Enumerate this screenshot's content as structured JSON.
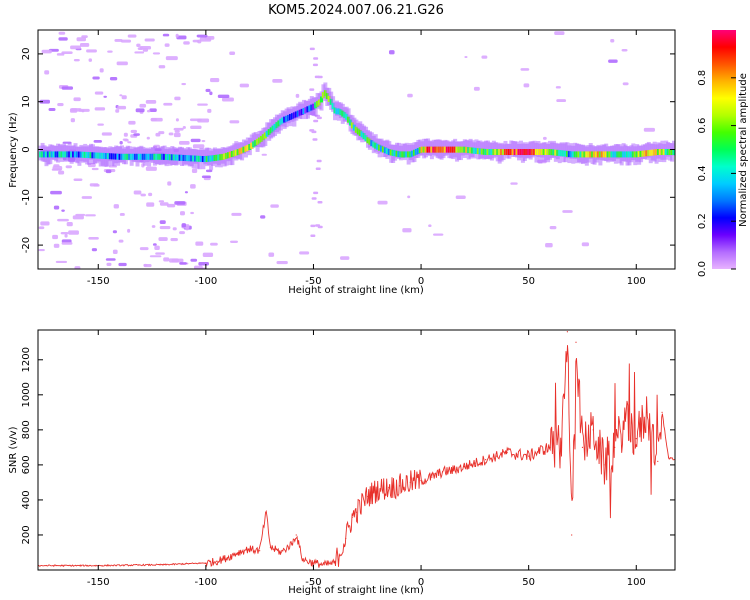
{
  "title": "KOM5.2024.007.06.21.G26",
  "chart_data": [
    {
      "type": "heatmap",
      "xlabel": "Height of straight line (km)",
      "ylabel": "Frequency (Hz)",
      "xlim": [
        -178,
        118
      ],
      "ylim": [
        -25,
        25
      ],
      "xticks": [
        -150,
        -100,
        -50,
        0,
        50,
        100
      ],
      "yticks": [
        -20,
        -10,
        0,
        10,
        20
      ],
      "ridge": {
        "x": [
          -178,
          -160,
          -140,
          -120,
          -100,
          -92,
          -85,
          -80,
          -75,
          -70,
          -65,
          -60,
          -55,
          -50,
          -47,
          -45,
          -42,
          -40,
          -38,
          -35,
          -32,
          -30,
          -27,
          -25,
          -22,
          -20,
          -15,
          -10,
          -5,
          0,
          10,
          20,
          30,
          40,
          50,
          60,
          70,
          80,
          90,
          100,
          110,
          118
        ],
        "y": [
          -1,
          -1,
          -1.5,
          -1.5,
          -2,
          -1.5,
          -0.5,
          0.5,
          2,
          4,
          6,
          7,
          8,
          9,
          10,
          12,
          10,
          8,
          8,
          7,
          5,
          4,
          3,
          2,
          1,
          0.5,
          -0.5,
          -1,
          -1,
          0,
          0,
          0,
          -0.5,
          -0.5,
          -0.5,
          -0.5,
          -1,
          -1,
          -1,
          -1,
          -0.5,
          -0.5
        ]
      },
      "colorbar": {
        "label": "Normalized spectral amplitude",
        "range": [
          0,
          1
        ],
        "ticks": [
          0.0,
          0.2,
          0.4,
          0.6,
          0.8
        ],
        "colormap": [
          "#e8b3ff",
          "#b36bff",
          "#6a00ff",
          "#0000ff",
          "#0077ff",
          "#00ccff",
          "#00ffcc",
          "#00ff55",
          "#44ff00",
          "#b3ff00",
          "#ffff00",
          "#ffb300",
          "#ff5500",
          "#ff0000",
          "#ff0077"
        ]
      }
    },
    {
      "type": "line",
      "xlabel": "Height of straight line (km)",
      "ylabel": "SNR (v/v)",
      "xlim": [
        -178,
        118
      ],
      "ylim": [
        0,
        1370
      ],
      "xticks": [
        -150,
        -100,
        -50,
        0,
        50,
        100
      ],
      "yticks": [
        200,
        400,
        600,
        800,
        1000,
        1200
      ],
      "color": "#e8302a",
      "series": [
        {
          "x": [
            -178,
            -150,
            -120,
            -100,
            -95,
            -90,
            -85,
            -80,
            -75,
            -72,
            -70,
            -65,
            -60,
            -58,
            -55,
            -50,
            -45,
            -40,
            -35,
            -32,
            -30,
            -25,
            -20,
            -15,
            -10,
            -5,
            0,
            5,
            10,
            15,
            20,
            25,
            30,
            35,
            40,
            45,
            50,
            55,
            60,
            65,
            68,
            70,
            72,
            75,
            80,
            85,
            90,
            95,
            100,
            105,
            110,
            112,
            115,
            118
          ],
          "y": [
            25,
            25,
            30,
            40,
            50,
            70,
            100,
            120,
            110,
            330,
            130,
            100,
            150,
            200,
            60,
            40,
            30,
            40,
            180,
            300,
            330,
            420,
            460,
            470,
            480,
            500,
            510,
            530,
            560,
            570,
            590,
            610,
            630,
            650,
            670,
            660,
            650,
            680,
            700,
            710,
            1360,
            200,
            1300,
            700,
            800,
            600,
            700,
            850,
            750,
            900,
            620,
            900,
            640,
            630
          ]
        }
      ]
    }
  ]
}
